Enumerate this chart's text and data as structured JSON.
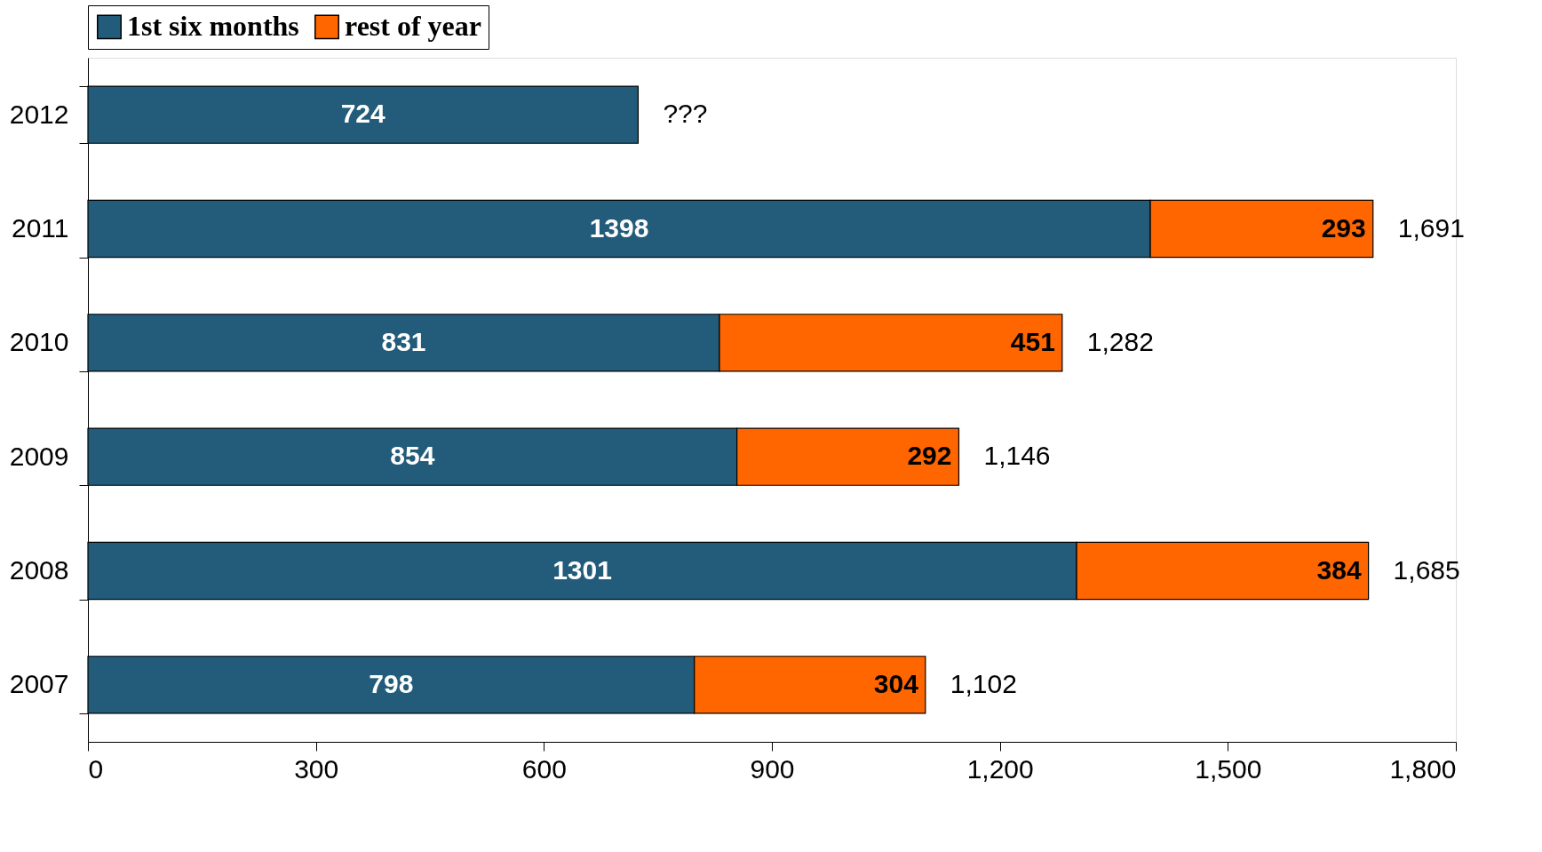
{
  "chart_data": {
    "type": "bar",
    "orientation": "horizontal",
    "stacked": true,
    "categories": [
      "2012",
      "2011",
      "2010",
      "2009",
      "2008",
      "2007"
    ],
    "series": [
      {
        "name": "1st six months",
        "color": "#235c7a",
        "values": [
          724,
          1398,
          831,
          854,
          1301,
          798
        ]
      },
      {
        "name": "rest of year",
        "color": "#ff6600",
        "values": [
          null,
          293,
          451,
          292,
          384,
          304
        ]
      }
    ],
    "totals": [
      "???",
      "1,691",
      "1,282",
      "1,146",
      "1,685",
      "1,102"
    ],
    "data_labels": true,
    "xlim": [
      0,
      1800
    ],
    "xticks": [
      0,
      300,
      600,
      900,
      {
        "value": 1200,
        "label": "1,200"
      },
      {
        "value": 1500,
        "label": "1,500"
      },
      {
        "value": 1800,
        "label": "1,800"
      }
    ],
    "legend": "top",
    "grid": false
  }
}
